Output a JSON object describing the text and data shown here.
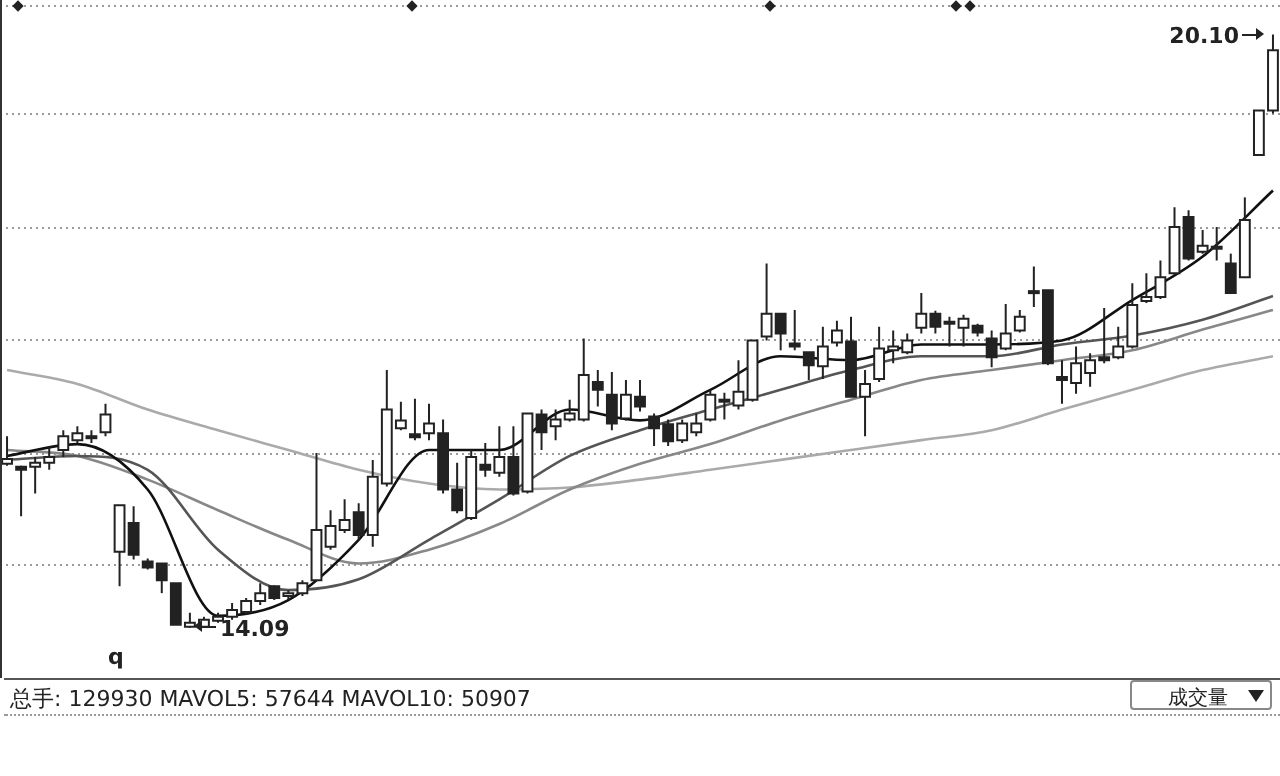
{
  "chart_data": {
    "type": "candlestick",
    "categories": [
      null,
      null,
      null,
      null,
      null,
      null,
      null,
      null,
      null,
      null,
      null,
      null,
      null,
      null,
      null,
      null,
      null,
      null,
      null,
      null,
      null,
      null,
      null,
      null,
      null,
      null,
      null,
      null,
      null,
      null,
      null,
      null,
      null,
      null,
      null,
      null,
      null,
      null,
      null,
      null,
      null,
      null,
      null,
      null,
      null,
      null,
      null,
      null,
      null,
      null,
      null,
      null,
      null,
      null,
      null,
      null,
      null,
      null,
      null,
      null,
      null,
      null,
      null,
      null,
      null,
      null,
      null,
      null,
      null,
      null,
      null,
      null,
      null,
      null,
      null,
      null,
      null,
      null,
      null,
      null,
      null,
      null,
      null,
      null,
      null,
      null,
      null,
      null,
      null,
      null,
      null
    ],
    "ohlc": [
      [
        15.75,
        16.03,
        15.73,
        15.8
      ],
      [
        15.72,
        15.73,
        15.22,
        15.69
      ],
      [
        15.72,
        15.82,
        15.45,
        15.76
      ],
      [
        15.76,
        15.92,
        15.69,
        15.82
      ],
      [
        15.89,
        16.09,
        15.82,
        16.03
      ],
      [
        15.99,
        16.13,
        15.96,
        16.06
      ],
      [
        16.01,
        16.09,
        15.96,
        16.03
      ],
      [
        16.07,
        16.36,
        16.03,
        16.25
      ],
      [
        14.86,
        15.33,
        14.51,
        15.33
      ],
      [
        15.15,
        15.32,
        14.78,
        14.83
      ],
      [
        14.76,
        14.79,
        14.68,
        14.7
      ],
      [
        14.74,
        14.74,
        14.44,
        14.57
      ],
      [
        14.54,
        14.54,
        14.12,
        14.12
      ],
      [
        14.1,
        14.24,
        14.09,
        14.14
      ],
      [
        14.1,
        14.2,
        14.1,
        14.17
      ],
      [
        14.16,
        14.24,
        14.14,
        14.2
      ],
      [
        14.2,
        14.34,
        14.17,
        14.27
      ],
      [
        14.25,
        14.39,
        14.22,
        14.36
      ],
      [
        14.36,
        14.54,
        14.32,
        14.44
      ],
      [
        14.51,
        14.52,
        14.37,
        14.39
      ],
      [
        14.41,
        14.47,
        14.37,
        14.44
      ],
      [
        14.44,
        14.57,
        14.41,
        14.54
      ],
      [
        14.57,
        15.86,
        14.57,
        15.08
      ],
      [
        14.91,
        15.28,
        14.88,
        15.12
      ],
      [
        15.08,
        15.39,
        15.05,
        15.18
      ],
      [
        15.26,
        15.35,
        14.98,
        15.03
      ],
      [
        15.03,
        15.79,
        14.91,
        15.62
      ],
      [
        15.55,
        16.7,
        15.52,
        16.3
      ],
      [
        16.11,
        16.38,
        16.09,
        16.19
      ],
      [
        16.05,
        16.41,
        15.99,
        16.02
      ],
      [
        16.06,
        16.36,
        15.99,
        16.16
      ],
      [
        16.06,
        16.2,
        15.45,
        15.49
      ],
      [
        15.49,
        15.76,
        15.25,
        15.28
      ],
      [
        15.2,
        15.89,
        15.18,
        15.82
      ],
      [
        15.74,
        15.96,
        15.62,
        15.69
      ],
      [
        15.66,
        16.13,
        15.62,
        15.82
      ],
      [
        15.82,
        16.13,
        15.43,
        15.45
      ],
      [
        15.47,
        16.26,
        15.45,
        16.26
      ],
      [
        16.25,
        16.3,
        15.89,
        16.07
      ],
      [
        16.13,
        16.3,
        15.99,
        16.2
      ],
      [
        16.2,
        16.4,
        16.18,
        16.26
      ],
      [
        16.2,
        17.02,
        16.18,
        16.65
      ],
      [
        16.58,
        16.7,
        16.33,
        16.5
      ],
      [
        16.45,
        16.68,
        16.09,
        16.16
      ],
      [
        16.21,
        16.6,
        16.19,
        16.45
      ],
      [
        16.43,
        16.6,
        16.28,
        16.33
      ],
      [
        16.23,
        16.26,
        15.93,
        16.11
      ],
      [
        16.15,
        16.2,
        15.93,
        15.98
      ],
      [
        15.99,
        16.2,
        15.96,
        16.16
      ],
      [
        16.07,
        16.26,
        16.03,
        16.16
      ],
      [
        16.2,
        16.5,
        16.18,
        16.45
      ],
      [
        16.38,
        16.47,
        16.2,
        16.4
      ],
      [
        16.34,
        16.8,
        16.3,
        16.48
      ],
      [
        16.4,
        17.0,
        16.38,
        17.0
      ],
      [
        17.04,
        17.78,
        17.0,
        17.27
      ],
      [
        17.27,
        17.27,
        16.9,
        17.07
      ],
      [
        16.97,
        17.31,
        16.9,
        16.94
      ],
      [
        16.88,
        16.88,
        16.6,
        16.75
      ],
      [
        16.74,
        17.14,
        16.61,
        16.94
      ],
      [
        16.98,
        17.2,
        16.94,
        17.1
      ],
      [
        16.99,
        17.24,
        16.43,
        16.43
      ],
      [
        16.43,
        16.7,
        16.03,
        16.56
      ],
      [
        16.61,
        17.14,
        16.58,
        16.92
      ],
      [
        16.9,
        17.1,
        16.77,
        16.94
      ],
      [
        16.88,
        17.07,
        16.86,
        17.0
      ],
      [
        17.13,
        17.48,
        17.07,
        17.27
      ],
      [
        17.27,
        17.3,
        17.07,
        17.14
      ],
      [
        17.19,
        17.24,
        16.94,
        17.17
      ],
      [
        17.13,
        17.26,
        16.94,
        17.22
      ],
      [
        17.15,
        17.17,
        17.04,
        17.08
      ],
      [
        17.02,
        17.1,
        16.73,
        16.83
      ],
      [
        16.92,
        17.37,
        16.9,
        17.07
      ],
      [
        17.1,
        17.31,
        17.08,
        17.24
      ],
      [
        17.49,
        17.75,
        17.34,
        17.5
      ],
      [
        17.51,
        17.51,
        16.75,
        16.77
      ],
      [
        16.63,
        16.8,
        16.36,
        16.6
      ],
      [
        16.57,
        16.94,
        16.46,
        16.77
      ],
      [
        16.67,
        16.87,
        16.53,
        16.8
      ],
      [
        16.83,
        17.33,
        16.77,
        16.8
      ],
      [
        16.83,
        17.14,
        16.81,
        16.94
      ],
      [
        16.94,
        17.58,
        16.92,
        17.36
      ],
      [
        17.4,
        17.68,
        17.38,
        17.44
      ],
      [
        17.44,
        17.81,
        17.42,
        17.64
      ],
      [
        17.68,
        18.35,
        17.66,
        18.15
      ],
      [
        18.25,
        18.32,
        17.81,
        17.83
      ],
      [
        17.9,
        18.12,
        17.88,
        17.96
      ],
      [
        17.93,
        18.15,
        17.81,
        17.95
      ],
      [
        17.78,
        17.88,
        17.48,
        17.48
      ],
      [
        17.64,
        18.45,
        17.64,
        18.22
      ],
      [
        18.88,
        19.33,
        18.88,
        19.33
      ],
      [
        19.33,
        20.1,
        19.3,
        19.94
      ]
    ],
    "color": "#222222",
    "ylim": [
      13.58,
      20.45
    ],
    "yticks": [
      {
        "value": 14.72,
        "label": null
      },
      {
        "value": 15.85,
        "label": null
      },
      {
        "value": 17.0,
        "label": null
      },
      {
        "value": 18.14,
        "label": null
      },
      {
        "value": 19.29,
        "label": null
      },
      {
        "value": 20.39,
        "label": null
      }
    ],
    "grid": "y",
    "series": [
      {
        "type": "line",
        "color": "#111111",
        "values": [
          15.83,
          null,
          null,
          null,
          null,
          15.95,
          null,
          null,
          null,
          null,
          15.49,
          null,
          null,
          null,
          null,
          14.21,
          null,
          null,
          null,
          null,
          14.37,
          null,
          null,
          null,
          null,
          14.98,
          null,
          null,
          null,
          null,
          15.89,
          null,
          null,
          null,
          null,
          15.89,
          null,
          null,
          null,
          null,
          16.3,
          null,
          null,
          null,
          null,
          16.19,
          null,
          null,
          null,
          null,
          16.5,
          null,
          null,
          null,
          null,
          16.84,
          null,
          null,
          null,
          null,
          16.8,
          null,
          null,
          null,
          null,
          16.96,
          null,
          null,
          null,
          null,
          16.96,
          null,
          null,
          null,
          null,
          17.0,
          null,
          null,
          null,
          null,
          17.41,
          null,
          null,
          null,
          null,
          17.85,
          null,
          null,
          null,
          null,
          18.52
        ]
      },
      {
        "type": "line",
        "color": "#555555",
        "values": [
          15.79,
          null,
          null,
          null,
          null,
          15.83,
          null,
          null,
          null,
          null,
          15.69,
          null,
          null,
          null,
          null,
          14.88,
          null,
          null,
          null,
          null,
          14.47,
          null,
          null,
          null,
          null,
          14.58,
          null,
          null,
          null,
          null,
          14.98,
          null,
          null,
          null,
          null,
          15.39,
          null,
          null,
          null,
          null,
          15.83,
          null,
          null,
          null,
          null,
          16.09,
          null,
          null,
          null,
          null,
          16.3,
          null,
          null,
          null,
          null,
          16.5,
          null,
          null,
          null,
          null,
          16.7,
          null,
          null,
          null,
          null,
          16.84,
          null,
          null,
          null,
          null,
          16.84,
          null,
          null,
          null,
          null,
          16.96,
          null,
          null,
          null,
          null,
          17.05,
          null,
          null,
          null,
          null,
          17.21,
          null,
          null,
          null,
          null,
          17.45
        ]
      },
      {
        "type": "line",
        "color": "#888888",
        "values": [
          15.89,
          null,
          null,
          null,
          null,
          15.83,
          null,
          null,
          null,
          null,
          15.59,
          null,
          null,
          null,
          null,
          15.28,
          null,
          null,
          null,
          null,
          14.98,
          null,
          null,
          null,
          null,
          14.74,
          null,
          null,
          null,
          null,
          14.88,
          null,
          null,
          null,
          null,
          15.14,
          null,
          null,
          null,
          null,
          15.49,
          null,
          null,
          null,
          null,
          15.75,
          null,
          null,
          null,
          null,
          15.95,
          null,
          null,
          null,
          null,
          16.19,
          null,
          null,
          null,
          null,
          16.4,
          null,
          null,
          null,
          null,
          16.6,
          null,
          null,
          null,
          null,
          16.7,
          null,
          null,
          null,
          null,
          16.8,
          null,
          null,
          null,
          null,
          16.9,
          null,
          null,
          null,
          null,
          17.11,
          null,
          null,
          null,
          null,
          17.31
        ]
      },
      {
        "type": "line",
        "color": "#aaaaaa",
        "values": [
          16.7,
          null,
          null,
          null,
          null,
          16.56,
          null,
          null,
          null,
          null,
          16.3,
          null,
          null,
          null,
          null,
          16.09,
          null,
          null,
          null,
          null,
          15.89,
          null,
          null,
          null,
          null,
          15.69,
          null,
          null,
          null,
          null,
          15.55,
          null,
          null,
          null,
          null,
          15.49,
          null,
          null,
          null,
          null,
          15.51,
          null,
          null,
          null,
          null,
          15.59,
          null,
          null,
          null,
          null,
          15.69,
          null,
          null,
          null,
          null,
          15.79,
          null,
          null,
          null,
          null,
          15.89,
          null,
          null,
          null,
          null,
          15.99,
          null,
          null,
          null,
          null,
          16.09,
          null,
          null,
          null,
          null,
          16.3,
          null,
          null,
          null,
          null,
          16.5,
          null,
          null,
          null,
          null,
          16.7,
          null,
          null,
          null,
          null,
          16.84
        ]
      }
    ],
    "annotations": [
      "20.10",
      "14.09",
      "q",
      "总手: 129930 MAVOL5: 57644 MAVOL10: 50907",
      "成交量"
    ]
  }
}
